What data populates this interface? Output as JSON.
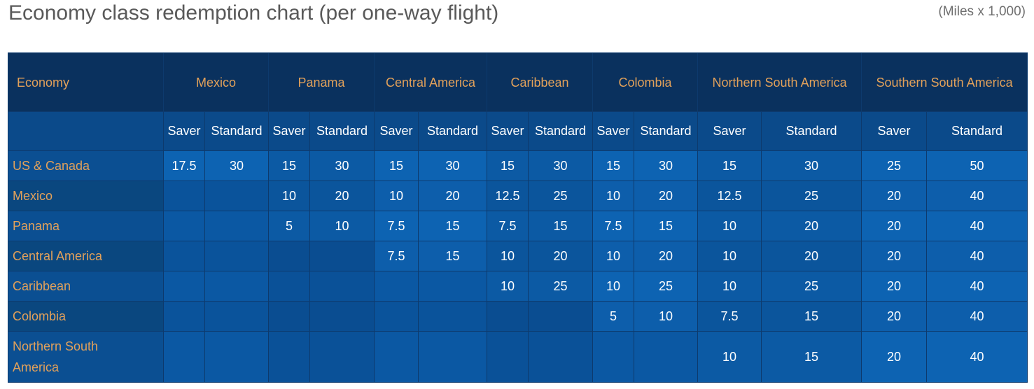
{
  "title": "Economy class redemption chart (per one-way flight)",
  "units": "(Miles x 1,000)",
  "table": {
    "corner_label": "Economy",
    "destinations": [
      "Mexico",
      "Panama",
      "Central America",
      "Caribbean",
      "Colombia",
      "Northern South America",
      "Southern South America"
    ],
    "saver_label": "Saver",
    "standard_label": "Standard",
    "rows": [
      {
        "origin": "US & Canada",
        "values": [
          "17.5",
          "30",
          "15",
          "30",
          "15",
          "30",
          "15",
          "30",
          "15",
          "30",
          "15",
          "30",
          "25",
          "50"
        ]
      },
      {
        "origin": "Mexico",
        "values": [
          "",
          "",
          "10",
          "20",
          "10",
          "20",
          "12.5",
          "25",
          "10",
          "20",
          "12.5",
          "25",
          "20",
          "40"
        ]
      },
      {
        "origin": "Panama",
        "values": [
          "",
          "",
          "5",
          "10",
          "7.5",
          "15",
          "7.5",
          "15",
          "7.5",
          "15",
          "10",
          "20",
          "20",
          "40"
        ]
      },
      {
        "origin": "Central America",
        "values": [
          "",
          "",
          "",
          "",
          "7.5",
          "15",
          "10",
          "20",
          "10",
          "20",
          "10",
          "20",
          "20",
          "40"
        ]
      },
      {
        "origin": "Caribbean",
        "values": [
          "",
          "",
          "",
          "",
          "",
          "",
          "10",
          "25",
          "10",
          "25",
          "10",
          "25",
          "20",
          "40"
        ]
      },
      {
        "origin": "Colombia",
        "values": [
          "",
          "",
          "",
          "",
          "",
          "",
          "",
          "",
          "5",
          "10",
          "7.5",
          "15",
          "20",
          "40"
        ]
      },
      {
        "origin": "Northern South America",
        "values": [
          "",
          "",
          "",
          "",
          "",
          "",
          "",
          "",
          "",
          "",
          "10",
          "15",
          "20",
          "40"
        ]
      }
    ]
  },
  "colors": {
    "header_bg": "#0a315e",
    "header_text": "#e2a15a",
    "subheader_bg": "#0b4a8a",
    "cell_bg": "#0d63b2",
    "cell_text": "#ffffff",
    "title_text": "#595959"
  }
}
